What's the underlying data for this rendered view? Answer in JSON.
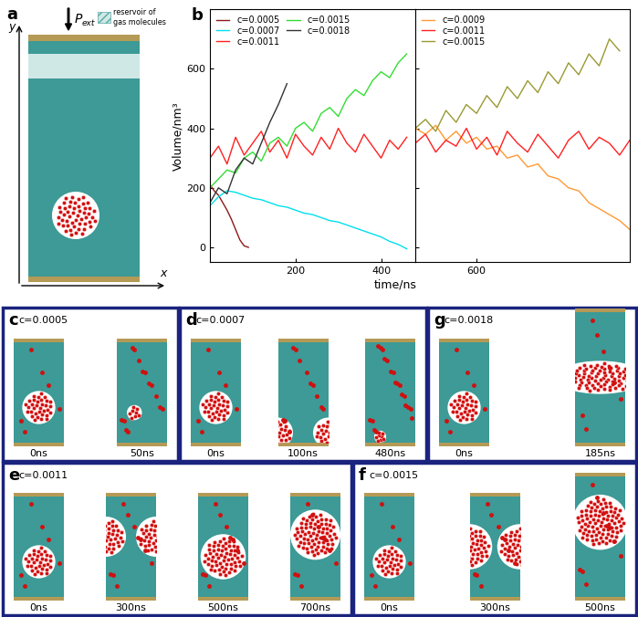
{
  "panel_a": {
    "label": "a",
    "axis_x": "x",
    "axis_y": "y",
    "pressure": "P",
    "pressure_subscript": "ext",
    "reservoir_label": "reservoir of\ngas molecules"
  },
  "panel_b": {
    "label": "b",
    "x_label": "time/ns",
    "y_label": "Volume/nm³"
  },
  "chart_data": [
    {
      "type": "line",
      "xlim": [
        0,
        480
      ],
      "xticks": [
        200,
        400
      ],
      "ylim": [
        -50,
        800
      ],
      "yticks": [
        0,
        200,
        400,
        600
      ],
      "legend": "upper left",
      "series": [
        {
          "name": "c=0.0005",
          "color": "#8b1a1a",
          "x": [
            0,
            10,
            20,
            30,
            40,
            50,
            60,
            70,
            80,
            90
          ],
          "values": [
            210,
            190,
            175,
            150,
            125,
            95,
            60,
            25,
            5,
            0
          ]
        },
        {
          "name": "c=0.0007",
          "color": "#00e0ee",
          "x": [
            0,
            20,
            40,
            60,
            80,
            100,
            120,
            140,
            160,
            180,
            200,
            220,
            240,
            260,
            280,
            300,
            320,
            340,
            360,
            380,
            400,
            420,
            440,
            460
          ],
          "values": [
            140,
            170,
            190,
            185,
            175,
            165,
            160,
            150,
            140,
            135,
            125,
            115,
            110,
            100,
            90,
            85,
            75,
            65,
            55,
            45,
            35,
            20,
            10,
            -5
          ]
        },
        {
          "name": "c=0.0011",
          "color": "#ff2020",
          "x": [
            0,
            20,
            40,
            60,
            80,
            100,
            120,
            140,
            160,
            180,
            200,
            220,
            240,
            260,
            280,
            300,
            320,
            340,
            360,
            380,
            400,
            420,
            440,
            460
          ],
          "values": [
            300,
            340,
            280,
            370,
            310,
            350,
            390,
            320,
            360,
            300,
            380,
            340,
            310,
            370,
            330,
            400,
            350,
            320,
            380,
            340,
            300,
            360,
            330,
            370
          ]
        },
        {
          "name": "c=0.0015",
          "color": "#33dd33",
          "x": [
            0,
            20,
            40,
            60,
            80,
            100,
            120,
            140,
            160,
            180,
            200,
            220,
            240,
            260,
            280,
            300,
            320,
            340,
            360,
            380,
            400,
            420,
            440,
            460
          ],
          "values": [
            200,
            230,
            260,
            250,
            300,
            320,
            290,
            350,
            370,
            340,
            400,
            420,
            390,
            450,
            470,
            440,
            500,
            530,
            510,
            560,
            590,
            570,
            620,
            650
          ]
        },
        {
          "name": "c=0.0018",
          "color": "#333333",
          "x": [
            0,
            20,
            40,
            60,
            80,
            100,
            120,
            140,
            160,
            180
          ],
          "values": [
            150,
            200,
            180,
            260,
            300,
            280,
            350,
            420,
            480,
            550
          ]
        }
      ]
    },
    {
      "type": "line",
      "xlim": [
        480,
        900
      ],
      "xticks": [
        600
      ],
      "ylim": [
        -50,
        800
      ],
      "yticks": [
        0,
        200,
        400,
        600
      ],
      "legend": "upper left",
      "tick_labels": "x",
      "series": [
        {
          "name": "c=0.0009",
          "color": "#ff9933",
          "x": [
            480,
            500,
            520,
            540,
            560,
            580,
            600,
            620,
            640,
            660,
            680,
            700,
            720,
            740,
            760,
            780,
            800,
            820,
            840,
            860,
            880,
            900
          ],
          "values": [
            400,
            380,
            410,
            360,
            390,
            350,
            370,
            330,
            340,
            300,
            310,
            270,
            280,
            240,
            230,
            200,
            190,
            150,
            130,
            110,
            90,
            60
          ]
        },
        {
          "name": "c=0.0011",
          "color": "#ff2020",
          "x": [
            480,
            500,
            520,
            540,
            560,
            580,
            600,
            620,
            640,
            660,
            680,
            700,
            720,
            740,
            760,
            780,
            800,
            820,
            840,
            860,
            880,
            900
          ],
          "values": [
            350,
            380,
            320,
            360,
            340,
            400,
            330,
            370,
            310,
            390,
            350,
            320,
            380,
            340,
            300,
            360,
            390,
            330,
            370,
            350,
            310,
            360
          ]
        },
        {
          "name": "c=0.0015",
          "color": "#999933",
          "x": [
            480,
            500,
            520,
            540,
            560,
            580,
            600,
            620,
            640,
            660,
            680,
            700,
            720,
            740,
            760,
            780,
            800,
            820,
            840,
            860,
            880
          ],
          "values": [
            400,
            430,
            390,
            460,
            420,
            480,
            450,
            510,
            470,
            540,
            500,
            560,
            520,
            590,
            550,
            620,
            580,
            650,
            610,
            700,
            660
          ]
        }
      ]
    }
  ],
  "snapshots": [
    {
      "label": "c",
      "concentration": "c=0.0005",
      "times": [
        "0ns",
        "50ns"
      ]
    },
    {
      "label": "d",
      "concentration": "c=0.0007",
      "times": [
        "0ns",
        "100ns",
        "480ns"
      ]
    },
    {
      "label": "g",
      "concentration": "c=0.0018",
      "times": [
        "0ns",
        "185ns"
      ]
    },
    {
      "label": "e",
      "concentration": "c=0.0011",
      "times": [
        "0ns",
        "300ns",
        "500ns",
        "700ns"
      ]
    },
    {
      "label": "f",
      "concentration": "c=0.0015",
      "times": [
        "0ns",
        "300ns",
        "500ns"
      ]
    }
  ]
}
